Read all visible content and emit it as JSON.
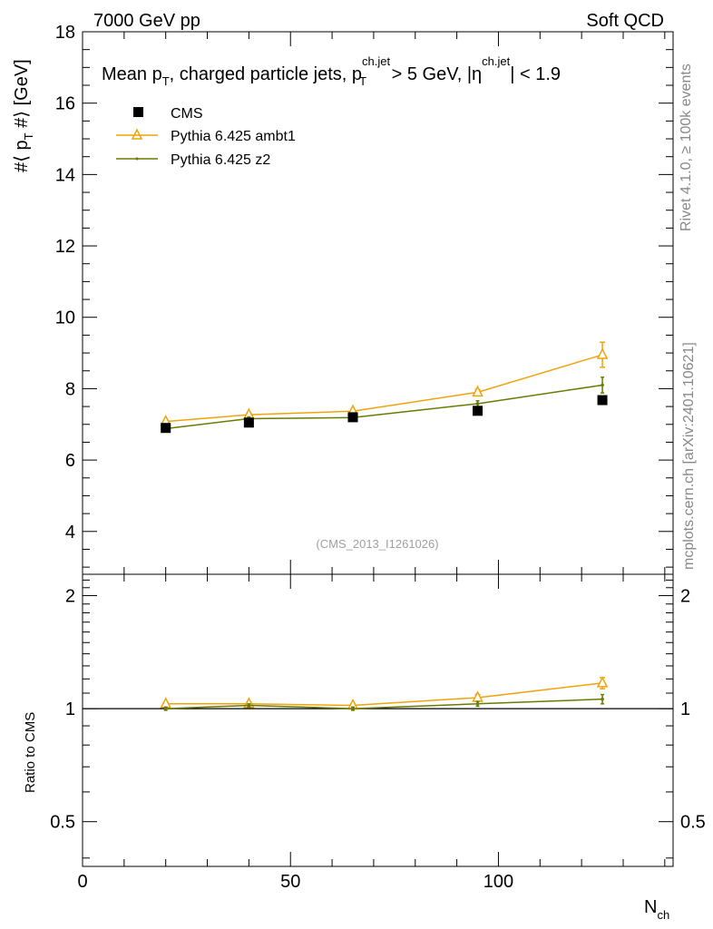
{
  "header": {
    "left": "7000 GeV pp",
    "right": "Soft QCD"
  },
  "side": {
    "rivet": "Rivet 4.1.0, ≥ 100k events",
    "mcplots": "mcplots.cern.ch [arXiv:2401.10621]"
  },
  "title": {
    "prefix": "Mean p",
    "prefix_sub": "T",
    "mid": ", charged particle jets, p",
    "mid_sup": "ch.jet",
    "mid_sub": "T",
    "cut1": " > 5 GeV,  |η",
    "cut1_sup": "ch.jet",
    "cut2": "| < 1.9"
  },
  "analysis_id": "(CMS_2013_I1261026)",
  "colors": {
    "cms": "#000000",
    "ambt1": "#f0a30a",
    "z2": "#6b7a00"
  },
  "chart_data": {
    "type": "line",
    "xlabel": "N",
    "xlabel_sub": "ch",
    "ylabel": "#⟨ p",
    "ylabel_sub": "T",
    "ylabel_tail": " #⟩ [GeV]",
    "ratio_ylabel": "Ratio to CMS",
    "xlim": [
      0,
      142
    ],
    "ylim": [
      2.8,
      18
    ],
    "ratio_ylim": [
      0.38,
      2.28
    ],
    "x_ticks": [
      0,
      50,
      100
    ],
    "y_ticks": [
      4,
      6,
      8,
      10,
      12,
      14,
      16,
      18
    ],
    "ratio_ticks": [
      {
        "value": 0.5,
        "label": "0.5"
      },
      {
        "value": 1,
        "label": "1"
      },
      {
        "value": 2,
        "label": "2"
      }
    ],
    "x": [
      20,
      40,
      65,
      95,
      125
    ],
    "series": [
      {
        "name": "CMS",
        "key": "cms",
        "values": [
          6.9,
          7.05,
          7.2,
          7.38,
          7.68
        ],
        "errors": [
          0.08,
          0.08,
          0.08,
          0.1,
          0.1
        ]
      },
      {
        "name": "Pythia 6.425 ambt1",
        "key": "ambt1",
        "values": [
          7.08,
          7.27,
          7.37,
          7.9,
          8.95
        ],
        "errors": [
          0.04,
          0.05,
          0.05,
          0.08,
          0.35
        ]
      },
      {
        "name": "Pythia 6.425 z2",
        "key": "z2",
        "values": [
          6.88,
          7.16,
          7.19,
          7.58,
          8.1
        ],
        "errors": [
          0.04,
          0.05,
          0.05,
          0.08,
          0.22
        ]
      }
    ],
    "ratio_series": [
      {
        "name": "Pythia 6.425 ambt1",
        "key": "ambt1",
        "values": [
          1.03,
          1.03,
          1.02,
          1.07,
          1.17
        ],
        "errors": [
          0.01,
          0.01,
          0.01,
          0.02,
          0.04
        ]
      },
      {
        "name": "Pythia 6.425 z2",
        "key": "z2",
        "values": [
          1.0,
          1.02,
          1.0,
          1.03,
          1.06
        ],
        "errors": [
          0.01,
          0.01,
          0.01,
          0.015,
          0.03
        ]
      }
    ]
  }
}
